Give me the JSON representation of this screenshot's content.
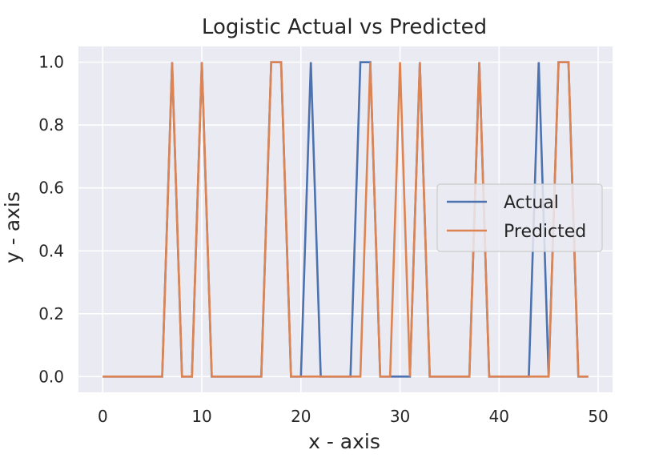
{
  "chart_data": {
    "type": "line",
    "title": "Logistic Actual vs Predicted",
    "xlabel": "x - axis",
    "ylabel": "y - axis",
    "xlim": [
      -2.45,
      51.45
    ],
    "ylim": [
      -0.05,
      1.05
    ],
    "xticks": [
      0,
      10,
      20,
      30,
      40,
      50
    ],
    "yticks": [
      0.0,
      0.2,
      0.4,
      0.6,
      0.8,
      1.0
    ],
    "ytick_labels": [
      "0.0",
      "0.2",
      "0.4",
      "0.6",
      "0.8",
      "1.0"
    ],
    "grid": true,
    "legend_position": "center-right",
    "x": [
      0,
      1,
      2,
      3,
      4,
      5,
      6,
      7,
      8,
      9,
      10,
      11,
      12,
      13,
      14,
      15,
      16,
      17,
      18,
      19,
      20,
      21,
      22,
      23,
      24,
      25,
      26,
      27,
      28,
      29,
      30,
      31,
      32,
      33,
      34,
      35,
      36,
      37,
      38,
      39,
      40,
      41,
      42,
      43,
      44,
      45,
      46,
      47,
      48,
      49
    ],
    "series": [
      {
        "name": "Actual",
        "color": "#4c72b0",
        "values": [
          0,
          0,
          0,
          0,
          0,
          0,
          0,
          1,
          0,
          0,
          1,
          0,
          0,
          0,
          0,
          0,
          0,
          1,
          1,
          0,
          0,
          1,
          0,
          0,
          0,
          0,
          1,
          1,
          0,
          0,
          0,
          0,
          1,
          0,
          0,
          0,
          0,
          0,
          1,
          0,
          0,
          0,
          0,
          0,
          1,
          0,
          1,
          1,
          0,
          0
        ]
      },
      {
        "name": "Predicted",
        "color": "#dd8452",
        "values": [
          0,
          0,
          0,
          0,
          0,
          0,
          0,
          1,
          0,
          0,
          1,
          0,
          0,
          0,
          0,
          0,
          0,
          1,
          1,
          0,
          0,
          0,
          0,
          0,
          0,
          0,
          0,
          1,
          0,
          0,
          1,
          0,
          1,
          0,
          0,
          0,
          0,
          0,
          1,
          0,
          0,
          0,
          0,
          0,
          0,
          0,
          1,
          1,
          0,
          0
        ]
      }
    ]
  },
  "colors": {
    "plot_background": "#eaeaf2",
    "grid": "#ffffff",
    "text": "#262626",
    "legend_background": "#eaeaf2",
    "legend_border": "#cccccc"
  }
}
